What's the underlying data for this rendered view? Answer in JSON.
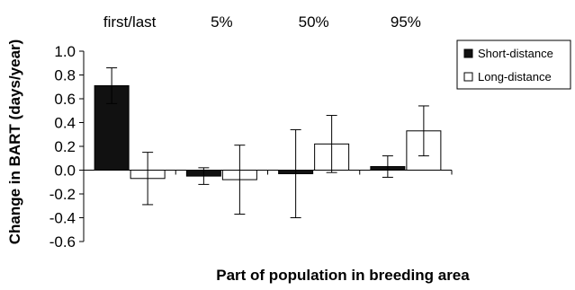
{
  "chart_data": {
    "type": "bar",
    "categories": [
      "first/last",
      "5%",
      "50%",
      "95%"
    ],
    "series": [
      {
        "name": "Short-distance",
        "values": [
          0.71,
          -0.05,
          -0.03,
          0.03
        ],
        "error": [
          0.15,
          0.07,
          0.37,
          0.09
        ],
        "fill": "#111111"
      },
      {
        "name": "Long-distance",
        "values": [
          -0.07,
          -0.08,
          0.22,
          0.33
        ],
        "error": [
          0.22,
          0.29,
          0.24,
          0.21
        ],
        "fill": "#ffffff"
      }
    ],
    "xlabel": "Part of population in breeding area",
    "ylabel": "Change in BART (days/year)",
    "ylim": [
      -0.6,
      1.0
    ],
    "yticks": [
      "1.0",
      "0.8",
      "0.6",
      "0.4",
      "0.2",
      "0.0",
      "-0.2",
      "-0.4",
      "-0.6"
    ],
    "grid": false,
    "legend_position": "top-right"
  }
}
